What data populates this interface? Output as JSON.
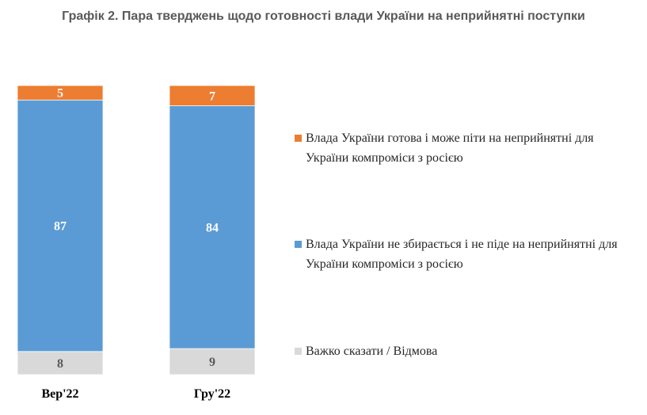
{
  "title": "Графік 2. Пара тверджень щодо готовності влади України на неприйнятні поступки",
  "colors": {
    "orange": "#ED7D31",
    "blue": "#5B9BD5",
    "gray": "#D9D9D9"
  },
  "legend": [
    {
      "label": "Влада України готова і може піти на неприйнятні для України компроміси з росією",
      "color": "#ED7D31",
      "icon": "square-swatch"
    },
    {
      "label": "Влада України не збирається і не піде на неприйнятні для України компроміси з росією",
      "color": "#5B9BD5",
      "icon": "square-swatch"
    },
    {
      "label": "Важко сказати / Відмова",
      "color": "#D9D9D9",
      "icon": "square-swatch"
    }
  ],
  "chart_data": {
    "type": "bar",
    "stacked": true,
    "title": "Графік 2. Пара тверджень щодо готовності влади України на неприйнятні поступки",
    "categories": [
      "Вер'22",
      "Гру'22"
    ],
    "series": [
      {
        "name": "Важко сказати / Відмова",
        "values": [
          8,
          9
        ],
        "color": "#D9D9D9"
      },
      {
        "name": "Влада України не збирається і не піде на неприйнятні для України компроміси з росією",
        "values": [
          87,
          84
        ],
        "color": "#5B9BD5"
      },
      {
        "name": "Влада України готова і може піти на неприйнятні для України компроміси з росією",
        "values": [
          5,
          7
        ],
        "color": "#ED7D31"
      }
    ],
    "ylim": [
      0,
      100
    ],
    "xlabel": "",
    "ylabel": "",
    "grid": false,
    "legend_position": "right"
  }
}
